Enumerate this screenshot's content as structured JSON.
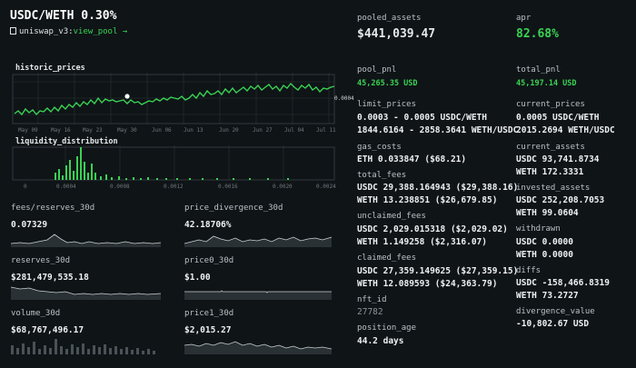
{
  "header": {
    "title": "USDC/WETH 0.30%",
    "link_prefix": "uniswap_v3:",
    "link_path": "view_pool",
    "link_arrow": "→"
  },
  "historic_prices": {
    "title": "historic_prices",
    "x_ticks": [
      "May 09",
      "May 16",
      "May 23",
      "May 30",
      "Jun 06",
      "Jun 13",
      "Jun 20",
      "Jun 27",
      "Jul 04",
      "Jul 11"
    ],
    "y_label": "0.0004"
  },
  "liquidity_distribution": {
    "title": "liquidity_distribution",
    "x_ticks": [
      "0",
      "0.0004",
      "0.0008",
      "0.0012",
      "0.0016",
      "0.0020",
      "0.0024"
    ]
  },
  "mini_charts": [
    {
      "label": "fees/reserves_30d",
      "value": "0.07329"
    },
    {
      "label": "price_divergence_30d",
      "value": "42.18706%"
    },
    {
      "label": "reserves_30d",
      "value": "$281,479,535.18"
    },
    {
      "label": "price0_30d",
      "value": "$1.00"
    },
    {
      "label": "volume_30d",
      "value": "$68,767,496.17"
    },
    {
      "label": "price1_30d",
      "value": "$2,015.27"
    }
  ],
  "pooled_assets": {
    "label": "pooled_assets",
    "value": "$441,039.47"
  },
  "apr": {
    "label": "apr",
    "value": "82.68%"
  },
  "pool_pnl": {
    "label": "pool_pnl",
    "value": "45,265.35 USD"
  },
  "total_pnl": {
    "label": "total_pnl",
    "value": "45,197.14 USD"
  },
  "limit_prices": {
    "label": "limit_prices",
    "line1": "0.0003 - 0.0005 USDC/WETH",
    "line2": "1844.6164 - 2858.3641 WETH/USDC"
  },
  "current_prices": {
    "label": "current_prices",
    "line1": "0.0005 USDC/WETH",
    "line2": "2015.2694 WETH/USDC"
  },
  "gas_costs": {
    "label": "gas_costs",
    "line1": "ETH 0.033847 ($68.21)"
  },
  "current_assets": {
    "label": "current_assets",
    "line1": "USDC 93,741.8734",
    "line2": "WETH 172.3331"
  },
  "total_fees": {
    "label": "total_fees",
    "line1": "USDC 29,388.164943 ($29,388.16)",
    "line2": "WETH 13.238851 ($26,679.85)"
  },
  "invested_assets": {
    "label": "invested_assets",
    "line1": "USDC 252,208.7053",
    "line2": "WETH 99.0604"
  },
  "unclaimed_fees": {
    "label": "unclaimed_fees",
    "line1": "USDC 2,029.015318 ($2,029.02)",
    "line2": "WETH 1.149258 ($2,316.07)"
  },
  "withdrawn": {
    "label": "withdrawn",
    "line1": "USDC 0.0000",
    "line2": "WETH 0.0000"
  },
  "claimed_fees": {
    "label": "claimed_fees",
    "line1": "USDC 27,359.149625 ($27,359.15)",
    "line2": "WETH 12.089593 ($24,363.79)"
  },
  "diffs": {
    "label": "diffs",
    "line1": "USDC -158,466.8319",
    "line2": "WETH 73.2727"
  },
  "nft_id": {
    "label": "nft_id",
    "value": "27782"
  },
  "divergence_value": {
    "label": "divergence_value",
    "value": "-10,802.67 USD"
  },
  "position_age": {
    "label": "position_age",
    "value": "44.2 days"
  },
  "colors": {
    "accent": "#39d353",
    "background": "#0f1417",
    "text": "#e4e8ea"
  },
  "icons": {
    "link_icon": "document-icon"
  }
}
